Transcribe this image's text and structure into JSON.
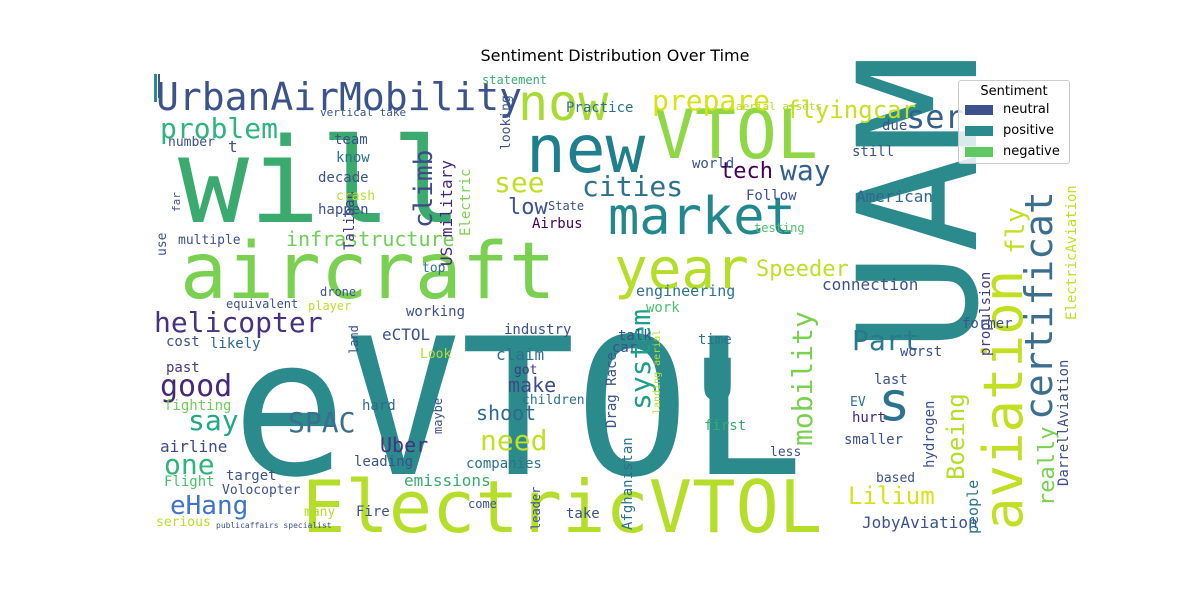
{
  "chart_data": {
    "type": "wordcloud",
    "title": "Sentiment Distribution Over Time",
    "legend": {
      "title": "Sentiment",
      "placement": "top-right",
      "entries": [
        {
          "name": "neutral",
          "color": "#3b528b"
        },
        {
          "name": "positive",
          "color": "#2a8a8c"
        },
        {
          "name": "negative",
          "color": "#5ec962"
        }
      ]
    },
    "words": [
      {
        "text": "eVTOL",
        "color": "#2a8a8c"
      },
      {
        "text": "UAM",
        "color": "#2a8a8c"
      },
      {
        "text": "will",
        "color": "#3aaa6f"
      },
      {
        "text": "ElectricVTOL",
        "color": "#b5de2b"
      },
      {
        "text": "aircraft",
        "color": "#7ad151"
      },
      {
        "text": "new",
        "color": "#1f7f8c"
      },
      {
        "text": "VTOL",
        "color": "#8fd744"
      },
      {
        "text": "now",
        "color": "#a8db34"
      },
      {
        "text": "market",
        "color": "#23888e"
      },
      {
        "text": "year",
        "color": "#b5de2b"
      },
      {
        "text": "UrbanAirMobility",
        "color": "#3b528b"
      },
      {
        "text": "aviation",
        "color": "#c2df23"
      },
      {
        "text": "certificat",
        "color": "#3b6e8f"
      },
      {
        "text": "U",
        "color": "#2a8a8c"
      },
      {
        "text": "s",
        "color": "#2c728e"
      },
      {
        "text": "ser",
        "color": "#35608d"
      },
      {
        "text": "prepare",
        "color": "#d8e219"
      },
      {
        "text": "flyingcar",
        "color": "#c7e020"
      },
      {
        "text": "problem",
        "color": "#2fb47c"
      },
      {
        "text": "cities",
        "color": "#2c728e"
      },
      {
        "text": "see",
        "color": "#c2df23"
      },
      {
        "text": "way",
        "color": "#35608d"
      },
      {
        "text": "tech",
        "color": "#440154"
      },
      {
        "text": "low",
        "color": "#3b528b"
      },
      {
        "text": "climb",
        "color": "#3e4a89"
      },
      {
        "text": "infrastructure",
        "color": "#6ece58"
      },
      {
        "text": "Speeder",
        "color": "#bddf26"
      },
      {
        "text": "helicopter",
        "color": "#46327e"
      },
      {
        "text": "Part",
        "color": "#2a788e"
      },
      {
        "text": "good",
        "color": "#482878"
      },
      {
        "text": "say",
        "color": "#22a884"
      },
      {
        "text": "SPAC",
        "color": "#3b6e8f"
      },
      {
        "text": "need",
        "color": "#c2df23"
      },
      {
        "text": "one",
        "color": "#2fb47c"
      },
      {
        "text": "make",
        "color": "#3e4a89"
      },
      {
        "text": "system",
        "color": "#1f9e89"
      },
      {
        "text": "mobility",
        "color": "#7ad151"
      },
      {
        "text": "Boeing",
        "color": "#b5de2b"
      },
      {
        "text": "Lilium",
        "color": "#d8e219"
      },
      {
        "text": "really",
        "color": "#7ad151"
      },
      {
        "text": "eHang",
        "color": "#3e74c9"
      },
      {
        "text": "shoot",
        "color": "#31688e"
      },
      {
        "text": "Uber",
        "color": "#46327e"
      },
      {
        "text": "connection",
        "color": "#3b528b"
      },
      {
        "text": "American",
        "color": "#31688e"
      },
      {
        "text": "JobyAviation",
        "color": "#3b528b"
      },
      {
        "text": "engineering",
        "color": "#2c728e"
      },
      {
        "text": "people",
        "color": "#2c728e"
      },
      {
        "text": "fly",
        "color": "#c2df23"
      },
      {
        "text": "ElectricAviation",
        "color": "#c2df23"
      },
      {
        "text": "DarrellAviation",
        "color": "#3b528b"
      },
      {
        "text": "propulsion",
        "color": "#443983"
      },
      {
        "text": "hydrogen",
        "color": "#3b528b"
      },
      {
        "text": "Afghanistan",
        "color": "#2c728e"
      },
      {
        "text": "Drag Race",
        "color": "#3b528b"
      },
      {
        "text": "US military",
        "color": "#482878"
      },
      {
        "text": "Electric",
        "color": "#7ad151"
      },
      {
        "text": "Taliban",
        "color": "#443983"
      },
      {
        "text": "State",
        "color": "#3b528b"
      },
      {
        "text": "Airbus",
        "color": "#440154"
      },
      {
        "text": "emissions",
        "color": "#3aaa6f"
      },
      {
        "text": "companies",
        "color": "#2c728e"
      },
      {
        "text": "leading",
        "color": "#3b528b"
      },
      {
        "text": "Volocopter",
        "color": "#3b528b"
      },
      {
        "text": "Flight",
        "color": "#4ac16d"
      },
      {
        "text": "target",
        "color": "#3b528b"
      },
      {
        "text": "airline",
        "color": "#3e4a89"
      },
      {
        "text": "fighting",
        "color": "#6ece58"
      },
      {
        "text": "past",
        "color": "#443983"
      },
      {
        "text": "cost",
        "color": "#3b528b"
      },
      {
        "text": "likely",
        "color": "#31688e"
      },
      {
        "text": "eCTOL",
        "color": "#3b528b"
      },
      {
        "text": "industry",
        "color": "#3b528b"
      },
      {
        "text": "claim",
        "color": "#2c728e"
      },
      {
        "text": "got",
        "color": "#443983"
      },
      {
        "text": "children",
        "color": "#2c728e"
      },
      {
        "text": "hard",
        "color": "#31688e"
      },
      {
        "text": "working",
        "color": "#3b528b"
      },
      {
        "text": "Look",
        "color": "#b5de2b"
      },
      {
        "text": "talk",
        "color": "#3b528b"
      },
      {
        "text": "car",
        "color": "#3b528b"
      },
      {
        "text": "time",
        "color": "#2c728e"
      },
      {
        "text": "work",
        "color": "#4ac16d"
      },
      {
        "text": "last",
        "color": "#3b528b"
      },
      {
        "text": "worst",
        "color": "#3b528b"
      },
      {
        "text": "former",
        "color": "#3b528b"
      },
      {
        "text": "testing",
        "color": "#4ac16d"
      },
      {
        "text": "Follow",
        "color": "#3b528b"
      },
      {
        "text": "world",
        "color": "#3b528b"
      },
      {
        "text": "still",
        "color": "#3b528b"
      },
      {
        "text": "due",
        "color": "#3b528b"
      },
      {
        "text": "decade",
        "color": "#3b528b"
      },
      {
        "text": "happen",
        "color": "#3b528b"
      },
      {
        "text": "crash",
        "color": "#b5de2b"
      },
      {
        "text": "know",
        "color": "#2c728e"
      },
      {
        "text": "team",
        "color": "#3b528b"
      },
      {
        "text": "Practice",
        "color": "#2c728e"
      },
      {
        "text": "statement",
        "color": "#3aaa6f"
      },
      {
        "text": "looking",
        "color": "#3b528b"
      },
      {
        "text": "number",
        "color": "#3b528b"
      },
      {
        "text": "multiple",
        "color": "#3b528b"
      },
      {
        "text": "equivalent",
        "color": "#3b528b"
      },
      {
        "text": "player",
        "color": "#b5de2b"
      },
      {
        "text": "drone",
        "color": "#3b528b"
      },
      {
        "text": "top",
        "color": "#2c728e"
      },
      {
        "text": "land",
        "color": "#3b528b"
      },
      {
        "text": "maybe",
        "color": "#3b528b"
      },
      {
        "text": "first",
        "color": "#3aaa6f"
      },
      {
        "text": "less",
        "color": "#3b528b"
      },
      {
        "text": "based",
        "color": "#3b528b"
      },
      {
        "text": "smaller",
        "color": "#3b528b"
      },
      {
        "text": "hurt",
        "color": "#482878"
      },
      {
        "text": "EV",
        "color": "#2c728e"
      },
      {
        "text": "take",
        "color": "#3b528b"
      },
      {
        "text": "come",
        "color": "#3b528b"
      },
      {
        "text": "leader",
        "color": "#3b528b"
      },
      {
        "text": "Fire",
        "color": "#3b528b"
      },
      {
        "text": "many",
        "color": "#b5de2b"
      },
      {
        "text": "serious",
        "color": "#b5de2b"
      },
      {
        "text": "use",
        "color": "#3b528b"
      },
      {
        "text": "far",
        "color": "#3b528b"
      },
      {
        "text": "t",
        "color": "#3b528b"
      },
      {
        "text": "vertical take",
        "color": "#3b528b"
      },
      {
        "text": "aerial assets",
        "color": "#b5de2b"
      },
      {
        "text": "landing aerial",
        "color": "#b5de2b"
      },
      {
        "text": "publicaffairs specialist",
        "color": "#3b528b"
      }
    ]
  }
}
